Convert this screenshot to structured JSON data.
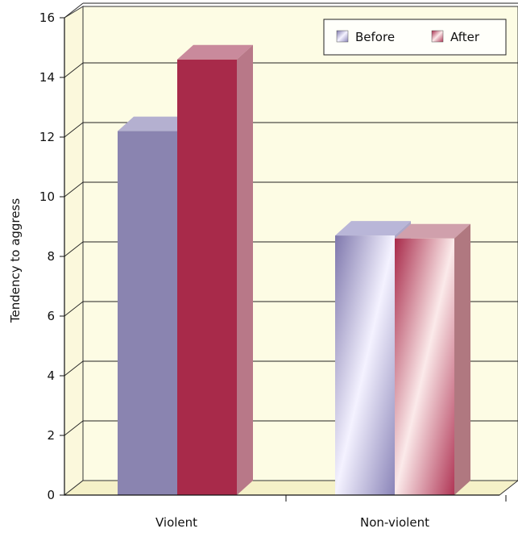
{
  "chart_data": {
    "type": "bar",
    "categories": [
      "Violent",
      "Non-violent"
    ],
    "series": [
      {
        "name": "Before",
        "values": [
          12.2,
          8.7
        ]
      },
      {
        "name": "After",
        "values": [
          14.6,
          8.6
        ]
      }
    ],
    "ylabel": "Tendency to aggress",
    "ylim": [
      0,
      16
    ],
    "yticks": [
      "0",
      "2",
      "4",
      "6",
      "8",
      "10",
      "12",
      "14",
      "16"
    ],
    "grid": true,
    "legend_position": "top-right",
    "colors": {
      "before": "#8a84b0",
      "after": "#a82a4a",
      "wall": "#fdfce4",
      "floor": "#f5f1c8"
    }
  }
}
